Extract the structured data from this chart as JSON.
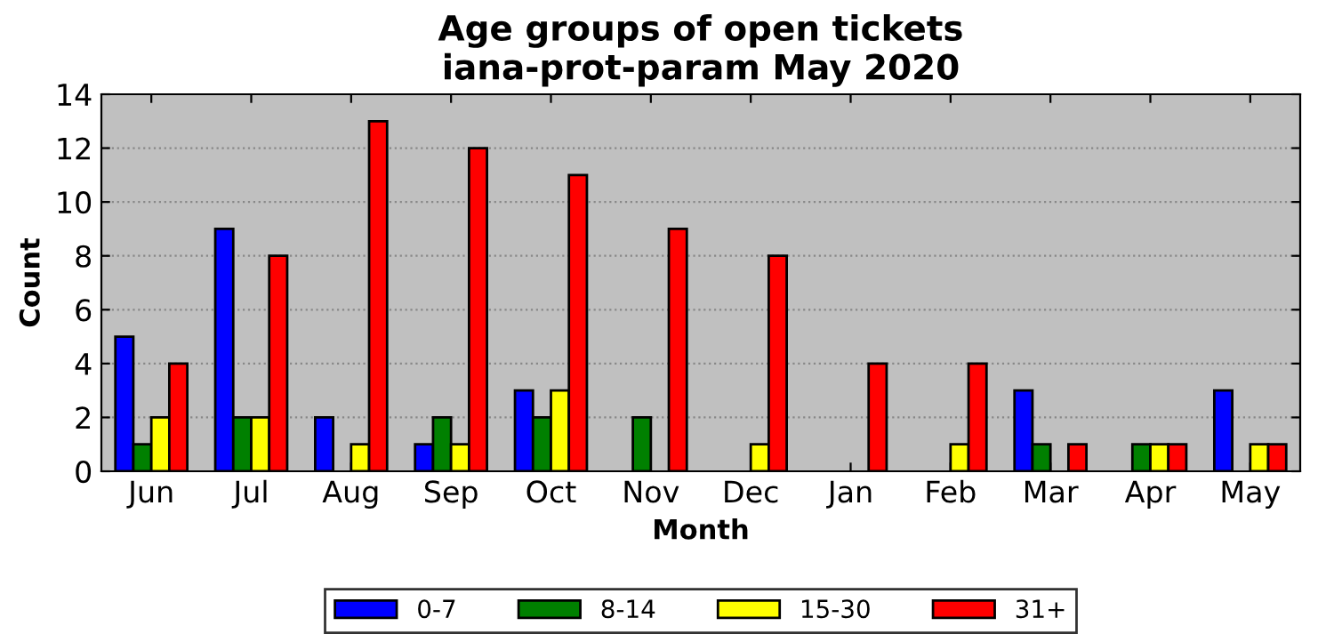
{
  "chart_data": {
    "type": "bar",
    "title": "Age groups of open tickets\niana-prot-param May 2020",
    "xlabel": "Month",
    "ylabel": "Count",
    "categories": [
      "Jun",
      "Jul",
      "Aug",
      "Sep",
      "Oct",
      "Nov",
      "Dec",
      "Jan",
      "Feb",
      "Mar",
      "Apr",
      "May"
    ],
    "series": [
      {
        "name": "0-7",
        "color": "#0000ff",
        "values": [
          5,
          9,
          2,
          1,
          3,
          0,
          0,
          0,
          0,
          3,
          0,
          3
        ]
      },
      {
        "name": "8-14",
        "color": "#008000",
        "values": [
          1,
          2,
          0,
          2,
          2,
          2,
          0,
          0,
          0,
          1,
          1,
          0
        ]
      },
      {
        "name": "15-30",
        "color": "#ffff00",
        "values": [
          2,
          2,
          1,
          1,
          3,
          0,
          1,
          0,
          1,
          0,
          1,
          1
        ]
      },
      {
        "name": "31+",
        "color": "#ff0000",
        "values": [
          4,
          8,
          13,
          12,
          11,
          9,
          8,
          4,
          4,
          1,
          1,
          1
        ]
      }
    ],
    "ylim": [
      0,
      14
    ],
    "yticks": [
      0,
      2,
      4,
      6,
      8,
      10,
      12,
      14
    ],
    "grid": "y",
    "legend": "bottom"
  }
}
